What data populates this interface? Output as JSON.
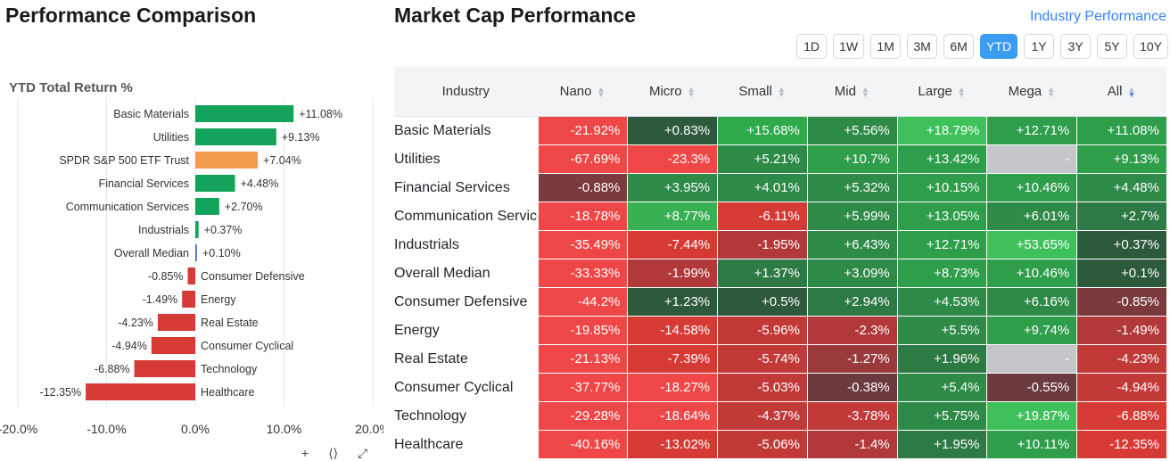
{
  "left": {
    "title": "Performance Comparison",
    "subtitle": "YTD Total Return %",
    "icons": [
      "plus-icon",
      "share-icon",
      "expand-icon"
    ]
  },
  "chart_data": {
    "type": "bar",
    "orientation": "horizontal",
    "title": "YTD Total Return %",
    "categories": [
      "Basic Materials",
      "Utilities",
      "SPDR S&P 500 ETF Trust",
      "Financial Services",
      "Communication Services",
      "Industrials",
      "Overall Median",
      "Consumer Defensive",
      "Energy",
      "Real Estate",
      "Consumer Cyclical",
      "Technology",
      "Healthcare"
    ],
    "values": [
      11.08,
      9.13,
      7.04,
      4.48,
      2.7,
      0.37,
      0.1,
      -0.85,
      -1.49,
      -4.23,
      -4.94,
      -6.88,
      -12.35
    ],
    "data_labels": [
      "+11.08%",
      "+9.13%",
      "+7.04%",
      "+4.48%",
      "+2.70%",
      "+0.37%",
      "+0.10%",
      "-0.85%",
      "-1.49%",
      "-4.23%",
      "-4.94%",
      "-6.88%",
      "-12.35%"
    ],
    "bar_colors": [
      "#13a35a",
      "#13a35a",
      "#f39c4f",
      "#13a35a",
      "#13a35a",
      "#13a35a",
      "#5b7fd6",
      "#d63a35",
      "#d63a35",
      "#d63a35",
      "#d63a35",
      "#d63a35",
      "#d63a35"
    ],
    "xlim": [
      -20,
      20
    ],
    "xticks": [
      -20,
      -10,
      0,
      10,
      20
    ],
    "xtick_labels": [
      "-20.0%",
      "-10.0%",
      "0.0%",
      "10.0%",
      "20.0%"
    ],
    "grid": true
  },
  "right": {
    "title": "Market Cap Performance",
    "link": "Industry Performance",
    "periods": [
      "1D",
      "1W",
      "1M",
      "3M",
      "6M",
      "YTD",
      "1Y",
      "3Y",
      "5Y",
      "10Y"
    ],
    "active_period": "YTD",
    "headers": [
      "Industry",
      "Nano",
      "Micro",
      "Small",
      "Mid",
      "Large",
      "Mega",
      "All"
    ],
    "rows": [
      {
        "name": "Basic Materials",
        "vals": [
          "-21.92%",
          "+0.83%",
          "+15.68%",
          "+5.56%",
          "+18.79%",
          "+12.71%",
          "+11.08%"
        ],
        "colors": [
          "#ef4747",
          "#2d5a3d",
          "#2eaa4a",
          "#2e8b47",
          "#3ec15a",
          "#2e9e4a",
          "#2e9e4a"
        ]
      },
      {
        "name": "Utilities",
        "vals": [
          "-67.69%",
          "-23.3%",
          "+5.21%",
          "+10.7%",
          "+13.42%",
          "-",
          "+9.13%"
        ],
        "colors": [
          "#ef4747",
          "#ef4747",
          "#2e8b47",
          "#2e9e4a",
          "#2e9e4a",
          "#c4c6cc",
          "#2e9e4a"
        ]
      },
      {
        "name": "Financial Services",
        "vals": [
          "-0.88%",
          "+3.95%",
          "+4.01%",
          "+5.32%",
          "+10.15%",
          "+10.46%",
          "+4.48%"
        ],
        "colors": [
          "#7a3a3e",
          "#2e8b47",
          "#2e8b47",
          "#2e8b47",
          "#2e9e4a",
          "#2e9e4a",
          "#2e8b47"
        ]
      },
      {
        "name": "Communication Services",
        "vals": [
          "-18.78%",
          "+8.77%",
          "-6.11%",
          "+5.99%",
          "+13.05%",
          "+6.01%",
          "+2.7%"
        ],
        "colors": [
          "#ef4747",
          "#3ab054",
          "#d63a35",
          "#2e8b47",
          "#2e9e4a",
          "#2e8b47",
          "#2e7a44"
        ]
      },
      {
        "name": "Industrials",
        "vals": [
          "-35.49%",
          "-7.44%",
          "-1.95%",
          "+6.43%",
          "+12.71%",
          "+53.65%",
          "+0.37%"
        ],
        "colors": [
          "#ef4747",
          "#d63a35",
          "#b2393a",
          "#2e8b47",
          "#2e9e4a",
          "#3ec15a",
          "#2d5a3d"
        ]
      },
      {
        "name": "Overall Median",
        "vals": [
          "-33.33%",
          "-1.99%",
          "+1.37%",
          "+3.09%",
          "+8.73%",
          "+10.46%",
          "+0.1%"
        ],
        "colors": [
          "#ef4747",
          "#b2393a",
          "#2e7a44",
          "#2e8b47",
          "#2e9e4a",
          "#2e9e4a",
          "#2d5a3d"
        ]
      },
      {
        "name": "Consumer Defensive",
        "vals": [
          "-44.2%",
          "+1.23%",
          "+0.5%",
          "+2.94%",
          "+4.53%",
          "+6.16%",
          "-0.85%"
        ],
        "colors": [
          "#ef4747",
          "#2d5a3d",
          "#2d5a3d",
          "#2e7a44",
          "#2e8b47",
          "#2e8b47",
          "#7a3a3e"
        ]
      },
      {
        "name": "Energy",
        "vals": [
          "-19.85%",
          "-14.58%",
          "-5.96%",
          "-2.3%",
          "+5.5%",
          "+9.74%",
          "-1.49%"
        ],
        "colors": [
          "#ef4747",
          "#d63a35",
          "#c23a37",
          "#b2393a",
          "#2e8b47",
          "#2e9e4a",
          "#b2393a"
        ]
      },
      {
        "name": "Real Estate",
        "vals": [
          "-21.13%",
          "-7.39%",
          "-5.74%",
          "-1.27%",
          "+1.96%",
          "-",
          "-4.23%"
        ],
        "colors": [
          "#ef4747",
          "#d63a35",
          "#c23a37",
          "#9a3a3c",
          "#2e7a44",
          "#c4c6cc",
          "#c23a37"
        ]
      },
      {
        "name": "Consumer Cyclical",
        "vals": [
          "-37.77%",
          "-18.27%",
          "-5.03%",
          "-0.38%",
          "+5.4%",
          "-0.55%",
          "-4.94%"
        ],
        "colors": [
          "#ef4747",
          "#ef4747",
          "#c23a37",
          "#6a3a3e",
          "#2e8b47",
          "#6a3a3e",
          "#c23a37"
        ]
      },
      {
        "name": "Technology",
        "vals": [
          "-29.28%",
          "-18.64%",
          "-4.37%",
          "-3.78%",
          "+5.75%",
          "+19.87%",
          "-6.88%"
        ],
        "colors": [
          "#ef4747",
          "#ef4747",
          "#c23a37",
          "#c23a37",
          "#2e8b47",
          "#3ec15a",
          "#d63a35"
        ]
      },
      {
        "name": "Healthcare",
        "vals": [
          "-40.16%",
          "-13.02%",
          "-5.06%",
          "-1.4%",
          "+1.95%",
          "+10.11%",
          "-12.35%"
        ],
        "colors": [
          "#ef4747",
          "#d63a35",
          "#c23a37",
          "#b2393a",
          "#2e7a44",
          "#2e9e4a",
          "#d63a35"
        ]
      }
    ]
  }
}
